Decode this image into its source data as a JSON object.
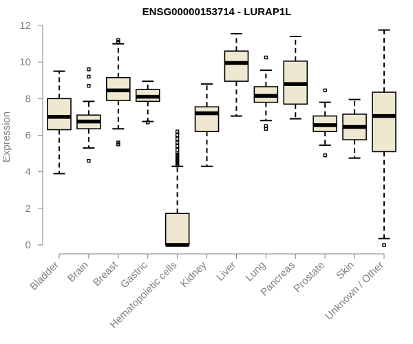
{
  "chart_data": {
    "type": "boxplot",
    "title": "ENSG00000153714 - LURAP1L",
    "xlabel": "",
    "ylabel": "Expression",
    "ylim": [
      0,
      12
    ],
    "yticks": [
      0,
      2,
      4,
      6,
      8,
      10,
      12
    ],
    "box_fill": "#efe8d1",
    "axis_color": "#808080",
    "categories": [
      "Bladder",
      "Brain",
      "Breast",
      "Gastric",
      "Hematopoietic cells",
      "Kidney",
      "Liver",
      "Lung",
      "Pancreas",
      "Prostate",
      "Skin",
      "Unknown / Other"
    ],
    "boxes": [
      {
        "whisker_low": 3.9,
        "q1": 6.3,
        "median": 7.0,
        "q3": 8.0,
        "whisker_high": 9.5,
        "outliers": []
      },
      {
        "whisker_low": 5.3,
        "q1": 6.35,
        "median": 6.75,
        "q3": 7.1,
        "whisker_high": 7.85,
        "outliers": [
          4.6,
          8.7,
          9.2,
          9.6
        ]
      },
      {
        "whisker_low": 6.35,
        "q1": 7.9,
        "median": 8.45,
        "q3": 9.15,
        "whisker_high": 11.0,
        "outliers": [
          5.5,
          5.6,
          11.1,
          11.2
        ]
      },
      {
        "whisker_low": 6.75,
        "q1": 7.85,
        "median": 8.1,
        "q3": 8.5,
        "whisker_high": 8.95,
        "outliers": [
          6.7
        ]
      },
      {
        "whisker_low": 0.0,
        "q1": 0.0,
        "median": 0.0,
        "q3": 1.72,
        "whisker_high": 4.3,
        "outliers": [
          4.35,
          4.45,
          4.55,
          4.65,
          4.75,
          4.85,
          4.95,
          5.05,
          5.2,
          5.4,
          5.6,
          5.8,
          6.0,
          6.2
        ]
      },
      {
        "whisker_low": 4.3,
        "q1": 6.2,
        "median": 7.2,
        "q3": 7.55,
        "whisker_high": 8.8,
        "outliers": []
      },
      {
        "whisker_low": 7.05,
        "q1": 8.95,
        "median": 9.95,
        "q3": 10.6,
        "whisker_high": 11.55,
        "outliers": []
      },
      {
        "whisker_low": 6.8,
        "q1": 7.8,
        "median": 8.15,
        "q3": 8.65,
        "whisker_high": 9.55,
        "outliers": [
          6.35,
          6.5,
          10.25
        ]
      },
      {
        "whisker_low": 6.9,
        "q1": 7.7,
        "median": 8.8,
        "q3": 10.05,
        "whisker_high": 11.4,
        "outliers": []
      },
      {
        "whisker_low": 5.45,
        "q1": 6.2,
        "median": 6.55,
        "q3": 7.05,
        "whisker_high": 7.8,
        "outliers": [
          4.9,
          8.45
        ]
      },
      {
        "whisker_low": 4.75,
        "q1": 5.75,
        "median": 6.45,
        "q3": 7.15,
        "whisker_high": 7.95,
        "outliers": []
      },
      {
        "whisker_low": 0.35,
        "q1": 5.1,
        "median": 7.05,
        "q3": 8.35,
        "whisker_high": 11.75,
        "outliers": [
          0.0
        ]
      }
    ]
  }
}
